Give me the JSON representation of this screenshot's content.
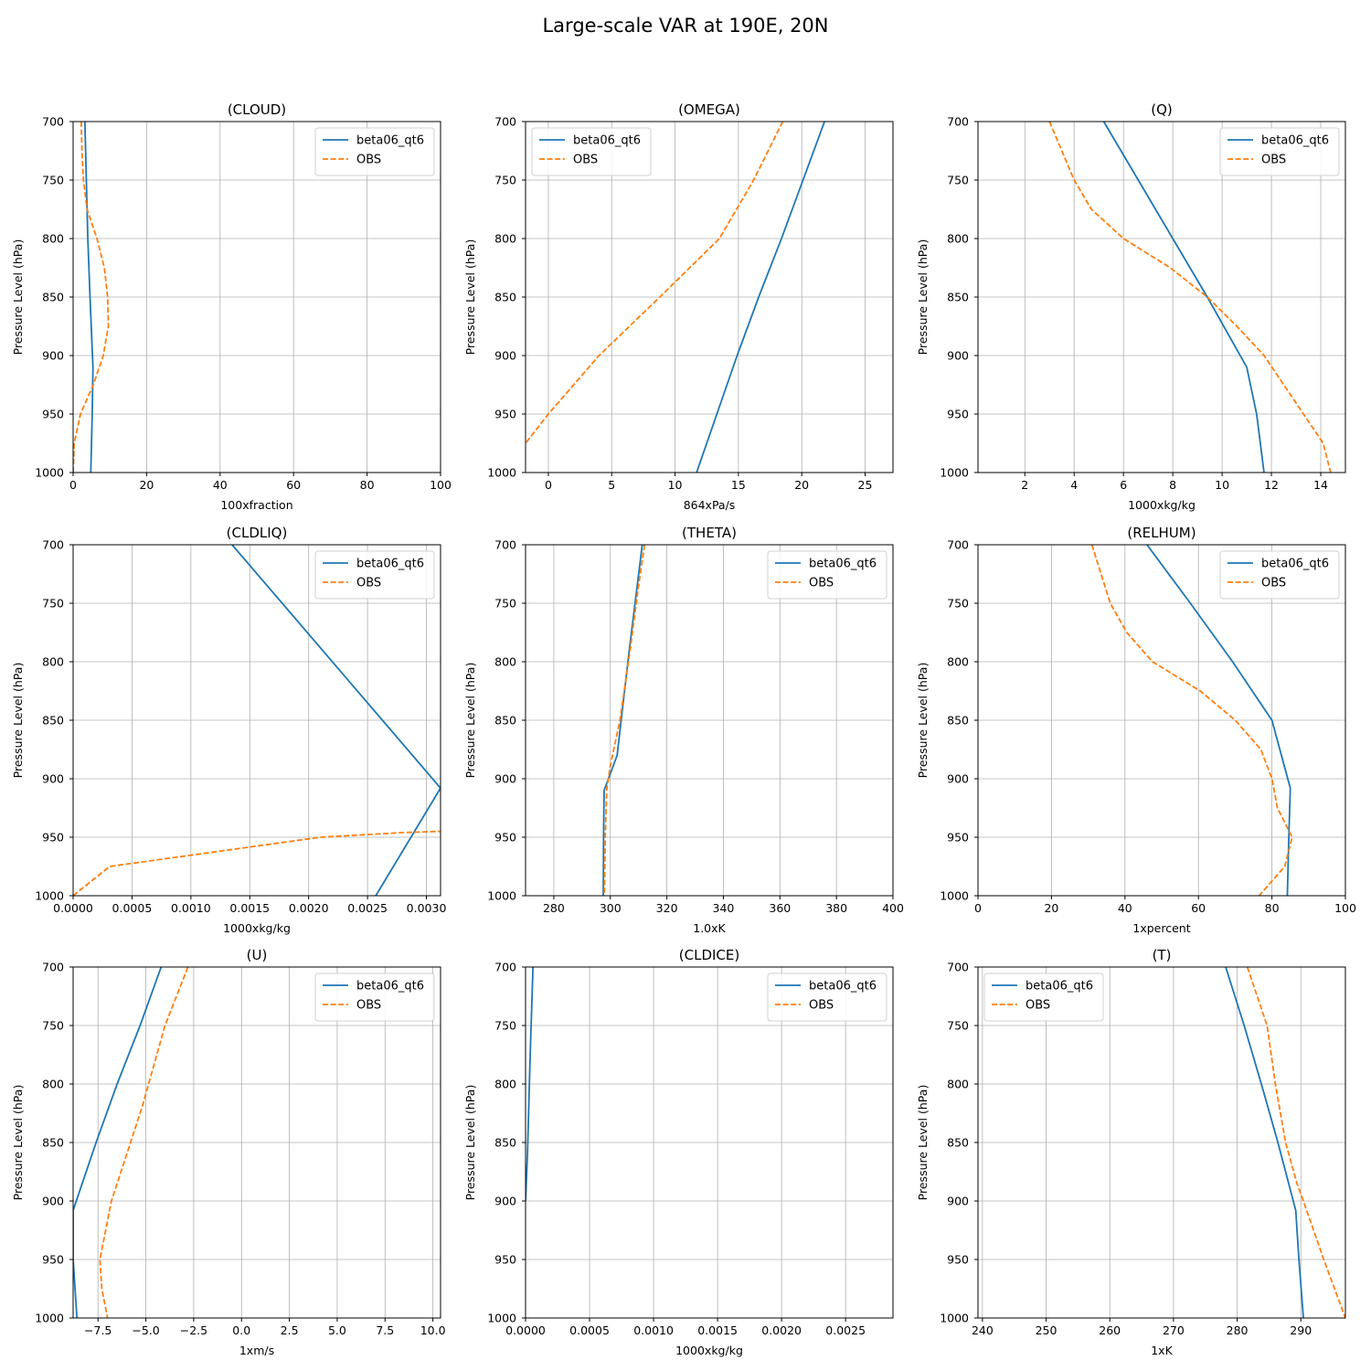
{
  "figure": {
    "title": "Large-scale VAR at 190E, 20N"
  },
  "colors": {
    "model": "#1f77b4",
    "obs": "#ff7f0e",
    "grid": "#b0b0b0"
  },
  "chart_data": [
    {
      "type": "line",
      "title": "(CLOUD)",
      "xlabel": "100xfraction",
      "ylabel": "Pressure Level (hPa)",
      "xlim": [
        0,
        100
      ],
      "ylim": [
        1000,
        700
      ],
      "xticks": [
        0,
        20,
        40,
        60,
        80,
        100
      ],
      "xtick_labels": [
        "0",
        "20",
        "40",
        "60",
        "80",
        "100"
      ],
      "yticks": [
        700,
        750,
        800,
        850,
        900,
        950,
        1000
      ],
      "ytick_labels": [
        "700",
        "750",
        "800",
        "850",
        "900",
        "950",
        "1000"
      ],
      "grid": true,
      "legend": "upper right",
      "series": [
        {
          "name": "beta06_qt6",
          "style": "solid",
          "x": [
            3.2,
            3.6,
            4.0,
            4.6,
            5.4,
            5.2,
            4.8
          ],
          "y": [
            700,
            750,
            800,
            850,
            910,
            950,
            1000
          ]
        },
        {
          "name": "OBS",
          "style": "dashed",
          "x": [
            2.2,
            2.4,
            2.8,
            3.8,
            6.5,
            8.5,
            9.4,
            9.6,
            8.2,
            5.5,
            2.0,
            0.3,
            0.0
          ],
          "y": [
            700,
            725,
            750,
            775,
            800,
            825,
            850,
            875,
            900,
            925,
            950,
            975,
            1000
          ]
        }
      ]
    },
    {
      "type": "line",
      "title": "(OMEGA)",
      "xlabel": "864xPa/s",
      "ylabel": "Pressure Level (hPa)",
      "xlim": [
        -1.8,
        27.2
      ],
      "ylim": [
        1000,
        700
      ],
      "xticks": [
        0,
        5,
        10,
        15,
        20,
        25
      ],
      "xtick_labels": [
        "0",
        "5",
        "10",
        "15",
        "20",
        "25"
      ],
      "yticks": [
        700,
        750,
        800,
        850,
        900,
        950,
        1000
      ],
      "ytick_labels": [
        "700",
        "750",
        "800",
        "850",
        "900",
        "950",
        "1000"
      ],
      "grid": true,
      "legend": "upper left",
      "series": [
        {
          "name": "beta06_qt6",
          "style": "solid",
          "x": [
            21.8,
            20.1,
            18.4,
            16.6,
            14.9,
            13.3,
            11.7
          ],
          "y": [
            700,
            750,
            800,
            850,
            900,
            950,
            1000
          ]
        },
        {
          "name": "OBS",
          "style": "dashed",
          "x": [
            18.5,
            16.2,
            13.5,
            8.8,
            4.0,
            0.0,
            -1.8
          ],
          "y": [
            700,
            750,
            800,
            850,
            900,
            950,
            975
          ]
        }
      ]
    },
    {
      "type": "line",
      "title": "(Q)",
      "xlabel": "1000xkg/kg",
      "ylabel": "Pressure Level (hPa)",
      "xlim": [
        0.1,
        15.0
      ],
      "ylim": [
        1000,
        700
      ],
      "xticks": [
        2,
        4,
        6,
        8,
        10,
        12,
        14
      ],
      "xtick_labels": [
        "2",
        "4",
        "6",
        "8",
        "10",
        "12",
        "14"
      ],
      "yticks": [
        700,
        750,
        800,
        850,
        900,
        950,
        1000
      ],
      "ytick_labels": [
        "700",
        "750",
        "800",
        "850",
        "900",
        "950",
        "1000"
      ],
      "grid": true,
      "legend": "upper right",
      "series": [
        {
          "name": "beta06_qt6",
          "style": "solid",
          "x": [
            5.2,
            6.6,
            8.0,
            9.4,
            11.0,
            11.4,
            11.7
          ],
          "y": [
            700,
            750,
            800,
            850,
            910,
            950,
            1000
          ]
        },
        {
          "name": "OBS",
          "style": "dashed",
          "x": [
            3.0,
            4.0,
            4.7,
            6.0,
            7.9,
            9.4,
            10.6,
            11.7,
            13.3,
            14.1,
            14.4
          ],
          "y": [
            700,
            750,
            775,
            800,
            825,
            850,
            875,
            900,
            950,
            975,
            1000
          ]
        }
      ]
    },
    {
      "type": "line",
      "title": "(CLDLIQ)",
      "xlabel": "1000xkg/kg",
      "ylabel": "Pressure Level (hPa)",
      "xlim": [
        0,
        0.00312
      ],
      "ylim": [
        1000,
        700
      ],
      "xticks": [
        0,
        0.0005,
        0.001,
        0.0015,
        0.002,
        0.0025,
        0.003
      ],
      "xtick_labels": [
        "0.0000",
        "0.0005",
        "0.0010",
        "0.0015",
        "0.0020",
        "0.0025",
        "0.0030"
      ],
      "yticks": [
        700,
        750,
        800,
        850,
        900,
        950,
        1000
      ],
      "ytick_labels": [
        "700",
        "750",
        "800",
        "850",
        "900",
        "950",
        "1000"
      ],
      "grid": true,
      "legend": "upper right",
      "series": [
        {
          "name": "beta06_qt6",
          "style": "solid",
          "x": [
            0.00135,
            0.00312,
            0.00257
          ],
          "y": [
            700,
            908,
            1000
          ]
        },
        {
          "name": "OBS",
          "style": "dashed",
          "x": [
            0.0,
            0.00031,
            0.0021,
            0.0028,
            0.00312
          ],
          "y": [
            1000,
            975,
            950,
            946,
            945
          ]
        }
      ]
    },
    {
      "type": "line",
      "title": "(THETA)",
      "xlabel": "1.0xK",
      "ylabel": "Pressure Level (hPa)",
      "xlim": [
        270,
        400
      ],
      "ylim": [
        1000,
        700
      ],
      "xticks": [
        280,
        300,
        320,
        340,
        360,
        380,
        400
      ],
      "xtick_labels": [
        "280",
        "300",
        "320",
        "340",
        "360",
        "380",
        "400"
      ],
      "yticks": [
        700,
        750,
        800,
        850,
        900,
        950,
        1000
      ],
      "ytick_labels": [
        "700",
        "750",
        "800",
        "850",
        "900",
        "950",
        "1000"
      ],
      "grid": true,
      "legend": "upper right",
      "series": [
        {
          "name": "beta06_qt6",
          "style": "solid",
          "x": [
            311.3,
            306.7,
            302.4,
            297.8,
            297.6,
            297.5
          ],
          "y": [
            700,
            790,
            880,
            910,
            950,
            1000
          ]
        },
        {
          "name": "OBS",
          "style": "dashed",
          "x": [
            312.1,
            309.7,
            307.0,
            303.4,
            299.9,
            298.7,
            298.2,
            297.9
          ],
          "y": [
            700,
            740,
            790,
            850,
            890,
            910,
            950,
            1000
          ]
        }
      ]
    },
    {
      "type": "line",
      "title": "(RELHUM)",
      "xlabel": "1xpercent",
      "ylabel": "Pressure Level (hPa)",
      "xlim": [
        0,
        100
      ],
      "ylim": [
        1000,
        700
      ],
      "xticks": [
        0,
        20,
        40,
        60,
        80,
        100
      ],
      "xtick_labels": [
        "0",
        "20",
        "40",
        "60",
        "80",
        "100"
      ],
      "yticks": [
        700,
        750,
        800,
        850,
        900,
        950,
        1000
      ],
      "ytick_labels": [
        "700",
        "750",
        "800",
        "850",
        "900",
        "950",
        "1000"
      ],
      "grid": true,
      "legend": "upper right",
      "series": [
        {
          "name": "beta06_qt6",
          "style": "solid",
          "x": [
            46,
            57.8,
            69.3,
            80.0,
            85.0,
            84.6,
            84.2
          ],
          "y": [
            700,
            750,
            800,
            850,
            908,
            950,
            1000
          ]
        },
        {
          "name": "OBS",
          "style": "dashed",
          "x": [
            31,
            36,
            40.5,
            47.5,
            60.5,
            70.0,
            77.0,
            80.0,
            81.5,
            85.5,
            83.5,
            76.5
          ],
          "y": [
            700,
            750,
            775,
            800,
            825,
            850,
            875,
            900,
            925,
            950,
            975,
            1000
          ]
        }
      ]
    },
    {
      "type": "line",
      "title": "(U)",
      "xlabel": "1xm/s",
      "ylabel": "Pressure Level (hPa)",
      "xlim": [
        -8.8,
        10.4
      ],
      "ylim": [
        1000,
        700
      ],
      "xticks": [
        -7.5,
        -5,
        -2.5,
        0,
        2.5,
        5,
        7.5,
        10
      ],
      "xtick_labels": [
        "−7.5",
        "−5.0",
        "−2.5",
        "0.0",
        "2.5",
        "5.0",
        "7.5",
        "10.0"
      ],
      "yticks": [
        700,
        750,
        800,
        850,
        900,
        950,
        1000
      ],
      "ytick_labels": [
        "700",
        "750",
        "800",
        "850",
        "900",
        "950",
        "1000"
      ],
      "grid": true,
      "legend": "upper right",
      "series": [
        {
          "name": "beta06_qt6",
          "style": "solid",
          "x": [
            -4.2,
            -5.3,
            -6.5,
            -7.6,
            -8.8,
            -8.8,
            -8.6
          ],
          "y": [
            700,
            750,
            800,
            850,
            908,
            950,
            1000
          ]
        },
        {
          "name": "OBS",
          "style": "dashed",
          "x": [
            -2.8,
            -4.0,
            -5.2,
            -6.0,
            -6.8,
            -7.4,
            -7.3,
            -7.0
          ],
          "y": [
            700,
            750,
            820,
            860,
            900,
            950,
            975,
            1000
          ]
        }
      ]
    },
    {
      "type": "line",
      "title": "(CLDICE)",
      "xlabel": "1000xkg/kg",
      "ylabel": "Pressure Level (hPa)",
      "xlim": [
        0,
        0.00287
      ],
      "ylim": [
        1000,
        700
      ],
      "xticks": [
        0,
        0.0005,
        0.001,
        0.0015,
        0.002,
        0.0025
      ],
      "xtick_labels": [
        "0.0000",
        "0.0005",
        "0.0010",
        "0.0015",
        "0.0020",
        "0.0025"
      ],
      "yticks": [
        700,
        750,
        800,
        850,
        900,
        950,
        1000
      ],
      "ytick_labels": [
        "700",
        "750",
        "800",
        "850",
        "900",
        "950",
        "1000"
      ],
      "grid": true,
      "legend": "upper right",
      "series": [
        {
          "name": "beta06_qt6",
          "style": "solid",
          "x": [
            5.8e-05,
            3.5e-05,
            1.5e-05,
            0.0
          ],
          "y": [
            700,
            780,
            860,
            900
          ]
        },
        {
          "name": "OBS",
          "style": "dashed",
          "x": [],
          "y": []
        }
      ]
    },
    {
      "type": "line",
      "title": "(T)",
      "xlabel": "1xK",
      "ylabel": "Pressure Level (hPa)",
      "xlim": [
        239.3,
        297.0
      ],
      "ylim": [
        1000,
        700
      ],
      "xticks": [
        240,
        250,
        260,
        270,
        280,
        290
      ],
      "xtick_labels": [
        "240",
        "250",
        "260",
        "270",
        "280",
        "290"
      ],
      "yticks": [
        700,
        750,
        800,
        850,
        900,
        950,
        1000
      ],
      "ytick_labels": [
        "700",
        "750",
        "800",
        "850",
        "900",
        "950",
        "1000"
      ],
      "grid": true,
      "legend": "upper left",
      "series": [
        {
          "name": "beta06_qt6",
          "style": "solid",
          "x": [
            278.2,
            281.1,
            283.8,
            286.4,
            289.2,
            289.7,
            290.4
          ],
          "y": [
            700,
            750,
            800,
            850,
            908,
            950,
            1000
          ]
        },
        {
          "name": "OBS",
          "style": "dashed",
          "x": [
            281.6,
            284.7,
            286.0,
            287.6,
            289.4,
            290.4,
            292.0,
            293.6,
            297.0
          ],
          "y": [
            700,
            750,
            800,
            850,
            885,
            900,
            925,
            950,
            1000
          ]
        }
      ]
    }
  ]
}
